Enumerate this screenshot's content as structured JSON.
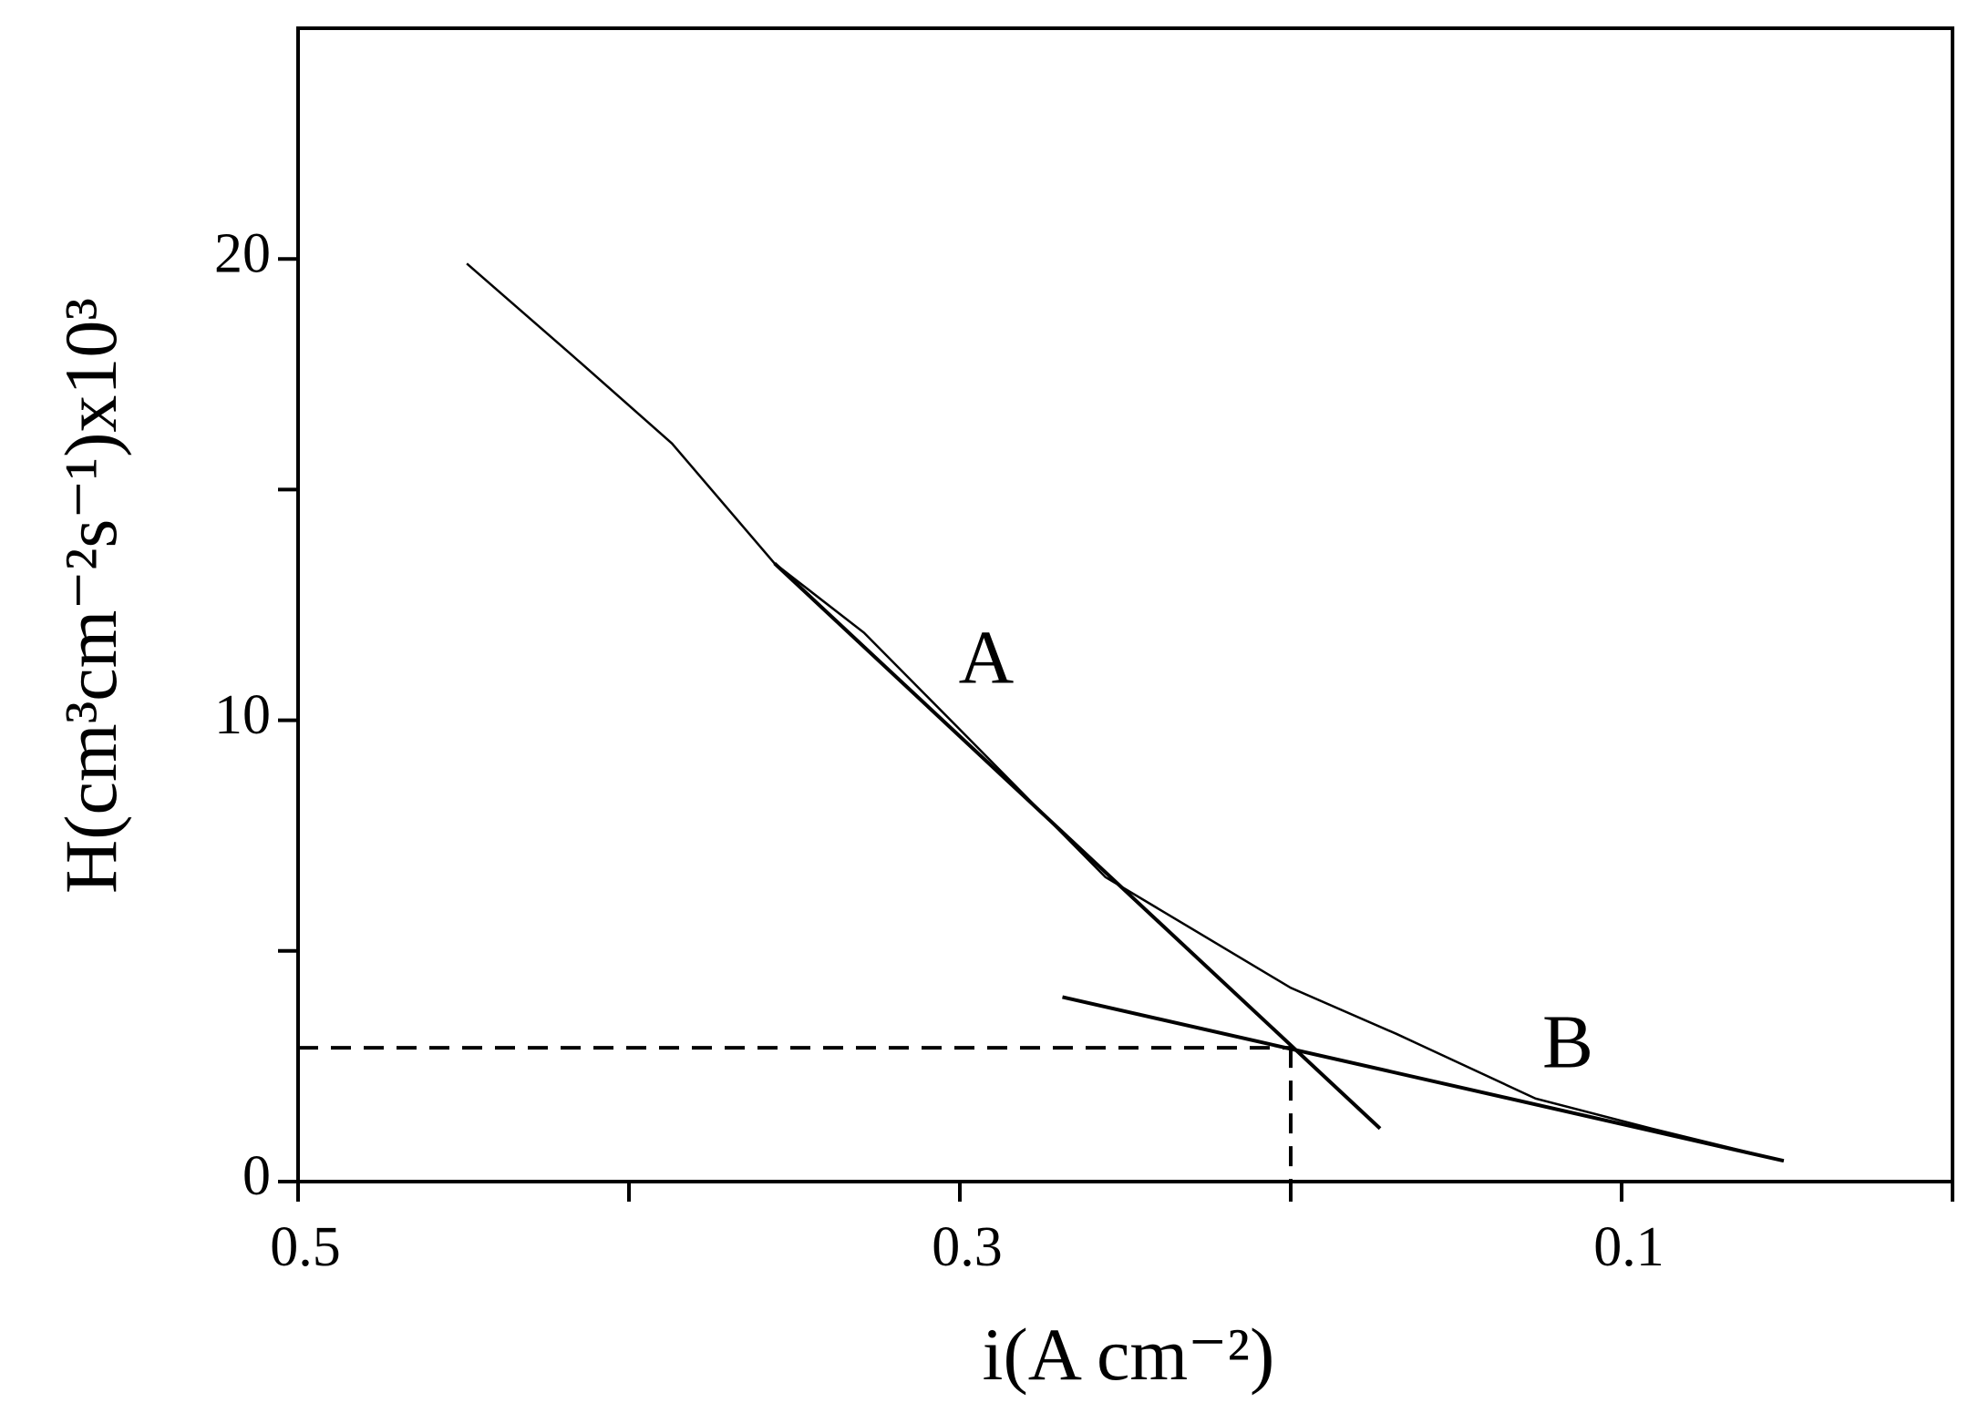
{
  "chart_data": {
    "type": "line",
    "xlabel": "i(A cm⁻²)",
    "ylabel": "H(cm³cm⁻²s⁻¹)x10³",
    "xlim": [
      0.5,
      0
    ],
    "xticks": [
      0.5,
      0.3,
      0.1
    ],
    "xminorticks": [
      0.4,
      0.2,
      0
    ],
    "ylim": [
      0,
      25
    ],
    "yticks": [
      0,
      10,
      20
    ],
    "yminorticks": [
      5,
      15
    ],
    "color": "#000000",
    "series": [
      {
        "x": [
          0.449,
          0.417,
          0.387,
          0.356,
          0.329,
          0.3,
          0.256,
          0.2,
          0.168,
          0.126,
          0.091,
          0.051
        ],
        "values": [
          19.9,
          17.9,
          16.0,
          13.4,
          11.9,
          9.8,
          6.6,
          4.2,
          3.2,
          1.8,
          1.15,
          0.45
        ]
      },
      {
        "x": [
          0.356,
          0.173
        ],
        "values": [
          13.4,
          1.15
        ]
      },
      {
        "x": [
          0.269,
          0.051
        ],
        "values": [
          4.0,
          0.45
        ]
      }
    ],
    "reference_point": {
      "x": 0.2,
      "y": 2.9
    },
    "annotations": [
      "A",
      "B"
    ]
  }
}
